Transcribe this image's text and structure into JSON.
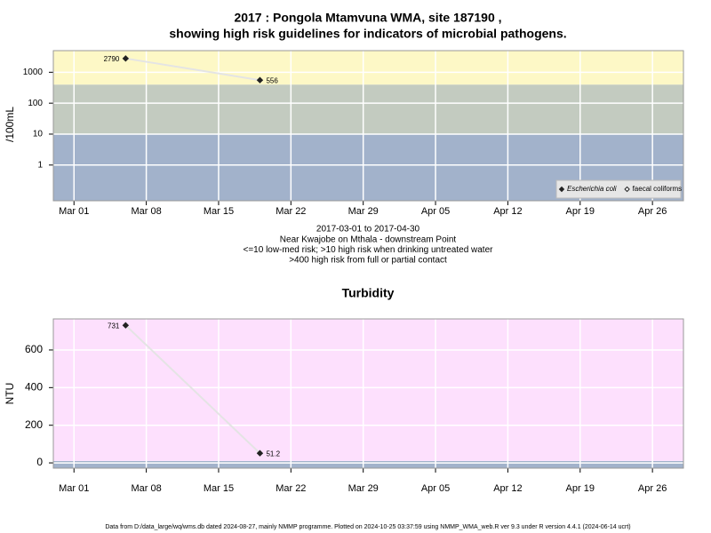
{
  "chart_data": [
    {
      "type": "line",
      "title": [
        "2017 : Pongola Mtamvuna WMA, site 187190 ,",
        "showing high risk guidelines for indicators of microbial pathogens."
      ],
      "ylabel": "/100mL",
      "notes": [
        "2017-03-01 to 2017-04-30",
        "Near Kwajobe on Mthala - downstream Point",
        "<=10 low-med risk; >10 high risk when drinking untreated water",
        ">400 high risk from full or partial contact"
      ],
      "yscale": "log",
      "xlim": [
        "2017-02-27",
        "2017-04-29"
      ],
      "xticks": [
        {
          "value": "2017-03-01",
          "label": "Mar 01"
        },
        {
          "value": "2017-03-08",
          "label": "Mar 08"
        },
        {
          "value": "2017-03-15",
          "label": "Mar 15"
        },
        {
          "value": "2017-03-22",
          "label": "Mar 22"
        },
        {
          "value": "2017-03-29",
          "label": "Mar 29"
        },
        {
          "value": "2017-04-05",
          "label": "Apr 05"
        },
        {
          "value": "2017-04-12",
          "label": "Apr 12"
        },
        {
          "value": "2017-04-19",
          "label": "Apr 19"
        },
        {
          "value": "2017-04-26",
          "label": "Apr 26"
        }
      ],
      "ylim": [
        0.07,
        5000
      ],
      "yticks": [
        1,
        10,
        100,
        1000
      ],
      "grid": true,
      "bands": [
        {
          "from": 0.07,
          "to": 10,
          "color": "#a2b2cb"
        },
        {
          "from": 10,
          "to": 400,
          "color": "#c3cbc0"
        },
        {
          "from": 400,
          "to": 5000,
          "color": "#fdf8c6"
        }
      ],
      "legend": "bottom right",
      "series": [
        {
          "name": "Escherichia coli",
          "color": "#222222",
          "marker": "filled",
          "x": [
            "2017-03-06",
            "2017-03-19"
          ],
          "values": [
            2790,
            556
          ]
        },
        {
          "name": "faecal coliforms",
          "color": "#222222",
          "marker": "open",
          "x": [],
          "values": []
        }
      ]
    },
    {
      "type": "line",
      "title": "Turbidity",
      "ylabel": "NTU",
      "yscale": "linear",
      "xlim": [
        "2017-02-27",
        "2017-04-29"
      ],
      "xticks": [
        {
          "value": "2017-03-01",
          "label": "Mar 01"
        },
        {
          "value": "2017-03-08",
          "label": "Mar 08"
        },
        {
          "value": "2017-03-15",
          "label": "Mar 15"
        },
        {
          "value": "2017-03-22",
          "label": "Mar 22"
        },
        {
          "value": "2017-03-29",
          "label": "Mar 29"
        },
        {
          "value": "2017-04-05",
          "label": "Apr 05"
        },
        {
          "value": "2017-04-12",
          "label": "Apr 12"
        },
        {
          "value": "2017-04-19",
          "label": "Apr 19"
        },
        {
          "value": "2017-04-26",
          "label": "Apr 26"
        }
      ],
      "ylim": [
        -28,
        765
      ],
      "yticks": [
        0,
        200,
        400,
        600
      ],
      "grid": true,
      "bands": [
        {
          "from": -28,
          "to": 10,
          "color": "#a2b2cb"
        },
        {
          "from": 10,
          "to": 765,
          "color": "#fde0fd"
        }
      ],
      "series": [
        {
          "name": "Turbidity",
          "color": "#222222",
          "marker": "filled",
          "x": [
            "2017-03-06",
            "2017-03-19"
          ],
          "values": [
            731,
            51.2
          ]
        }
      ]
    }
  ],
  "footer": "Data from D:/data_large/wq/wms.db dated 2024-08-27, mainly NMMP programme. Plotted on 2024-10-25 03:37:59 using NMMP_WMA_web.R ver 9.3 under R version 4.4.1 (2024-06-14 ucrt)"
}
